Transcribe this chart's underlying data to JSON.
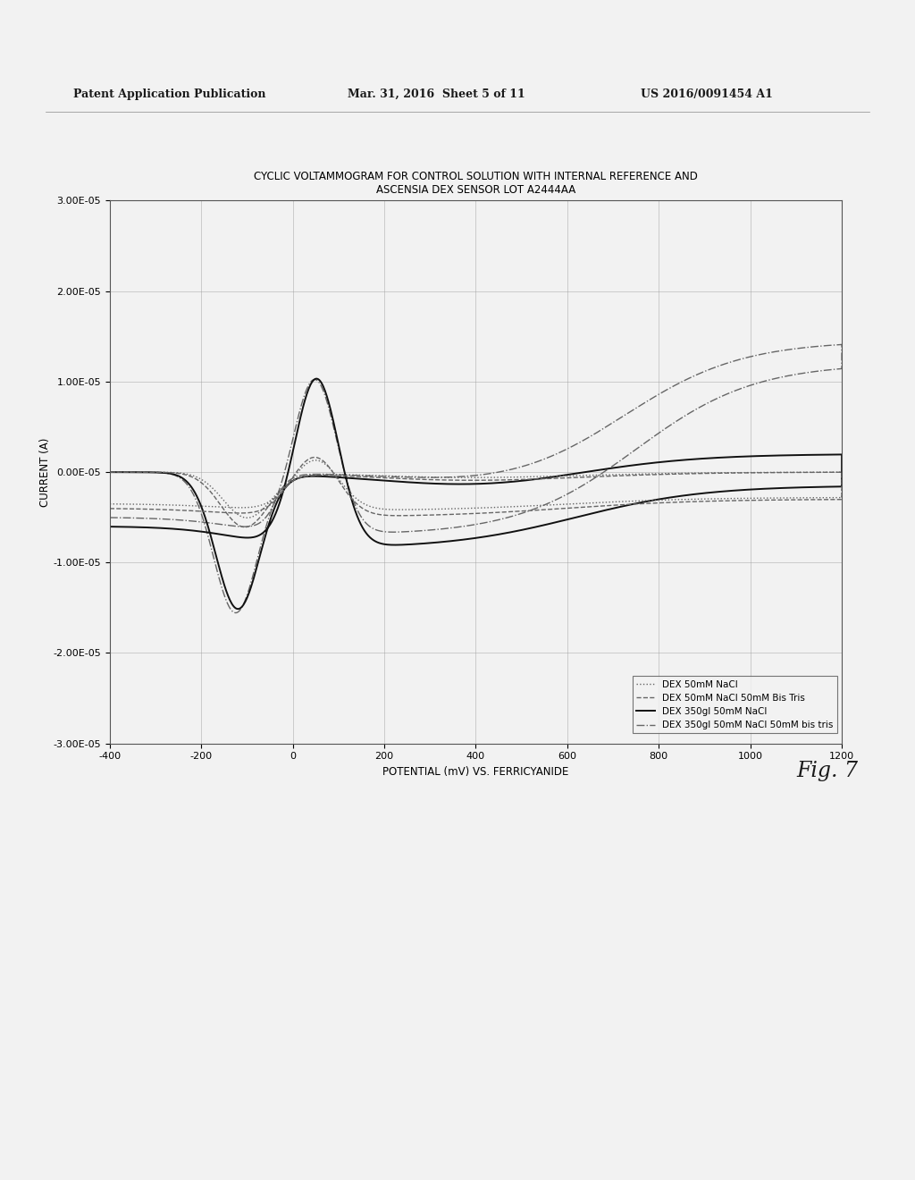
{
  "title_line1": "CYCLIC VOLTAMMOGRAM FOR CONTROL SOLUTION WITH INTERNAL REFERENCE AND",
  "title_line2": "ASCENSIA DEX SENSOR LOT A2444AA",
  "xlabel": "POTENTIAL (mV) VS. FERRICYANIDE",
  "ylabel": "CURRENT (A)",
  "xlim": [
    -400,
    1200
  ],
  "ylim": [
    -3e-05,
    3e-05
  ],
  "xticks": [
    -400,
    -200,
    0,
    200,
    400,
    600,
    800,
    1000,
    1200
  ],
  "yticks": [
    -3e-05,
    -2e-05,
    -1e-05,
    0.0,
    1e-05,
    2e-05,
    3e-05
  ],
  "header_left": "Patent Application Publication",
  "header_center": "Mar. 31, 2016  Sheet 5 of 11",
  "header_right": "US 2016/0091454 A1",
  "fig_label": "Fig. 7",
  "legend_entries": [
    "DEX 50mM NaCl",
    "DEX 50mM NaCl 50mM Bis Tris",
    "DEX 350gl 50mM NaCl",
    "DEX 350gl 50mM NaCl 50mM bis tris"
  ],
  "background_color": "#f0f0f0",
  "plot_bg": "#f0f0f0",
  "line_color": "#000000",
  "grid_color": "#999999"
}
